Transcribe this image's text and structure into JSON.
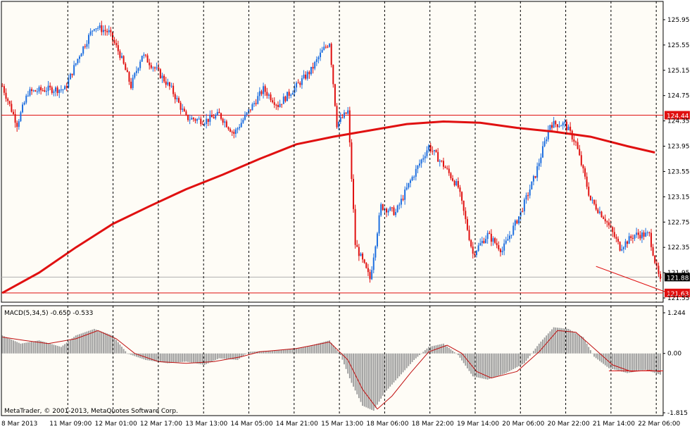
{
  "app": {
    "copyright": "MetaTrader, © 2001-2013, MetaQuotes Software Corp."
  },
  "colors": {
    "background": "#ffffff",
    "plot_bg": "#fefcf6",
    "grid": "#000000",
    "bull": "#1e6fe0",
    "bear": "#e01010",
    "ma": "#e01010",
    "hline": "#e01010",
    "histogram": "#9a9a9a",
    "signal": "#c01010"
  },
  "chart_data": [
    {
      "type": "candlestick",
      "symbol_pane": "main",
      "ylim": [
        121.55,
        126.15
      ],
      "y_tick_labels": [
        "125.95",
        "125.55",
        "125.15",
        "124.75",
        "124.35",
        "123.95",
        "123.55",
        "123.15",
        "122.75",
        "122.35",
        "121.95",
        "121.55"
      ],
      "y_ticks": [
        125.95,
        125.55,
        125.15,
        124.75,
        124.35,
        123.95,
        123.55,
        123.15,
        122.75,
        122.35,
        121.95,
        121.55
      ],
      "x_tick_labels": [
        "8 Mar 2013",
        "11 Mar 09:00",
        "12 Mar 01:00",
        "12 Mar 17:00",
        "13 Mar 13:00",
        "14 Mar 05:00",
        "14 Mar 21:00",
        "15 Mar 13:00",
        "18 Mar 06:00",
        "18 Mar 22:00",
        "19 Mar 14:00",
        "20 Mar 06:00",
        "20 Mar 22:00",
        "21 Mar 14:00",
        "22 Mar 06:00"
      ],
      "horizontal_lines": [
        {
          "value": 124.44,
          "label": "124.44"
        },
        {
          "value": 121.63,
          "label": "121.63"
        }
      ],
      "current_price": {
        "value": 121.88,
        "label": "121.88"
      },
      "moving_average_path": [
        {
          "bar": 0,
          "value": 121.63
        },
        {
          "bar": 20,
          "value": 121.95
        },
        {
          "bar": 40,
          "value": 122.35
        },
        {
          "bar": 60,
          "value": 122.72
        },
        {
          "bar": 80,
          "value": 123.0
        },
        {
          "bar": 100,
          "value": 123.27
        },
        {
          "bar": 120,
          "value": 123.5
        },
        {
          "bar": 140,
          "value": 123.75
        },
        {
          "bar": 160,
          "value": 123.98
        },
        {
          "bar": 180,
          "value": 124.1
        },
        {
          "bar": 200,
          "value": 124.2
        },
        {
          "bar": 220,
          "value": 124.3
        },
        {
          "bar": 240,
          "value": 124.34
        },
        {
          "bar": 260,
          "value": 124.32
        },
        {
          "bar": 280,
          "value": 124.24
        },
        {
          "bar": 300,
          "value": 124.18
        },
        {
          "bar": 320,
          "value": 124.1
        },
        {
          "bar": 340,
          "value": 123.95
        },
        {
          "bar": 355,
          "value": 123.85
        }
      ],
      "trendline": [
        {
          "bar": 323,
          "value": 122.05
        },
        {
          "bar": 365,
          "value": 121.6
        }
      ],
      "price_path": [
        {
          "bar": 0,
          "value": 124.9
        },
        {
          "bar": 8,
          "value": 124.3
        },
        {
          "bar": 14,
          "value": 124.8
        },
        {
          "bar": 24,
          "value": 124.85
        },
        {
          "bar": 34,
          "value": 124.85
        },
        {
          "bar": 42,
          "value": 125.4
        },
        {
          "bar": 50,
          "value": 125.85
        },
        {
          "bar": 58,
          "value": 125.75
        },
        {
          "bar": 64,
          "value": 125.4
        },
        {
          "bar": 70,
          "value": 124.9
        },
        {
          "bar": 76,
          "value": 125.4
        },
        {
          "bar": 84,
          "value": 125.15
        },
        {
          "bar": 92,
          "value": 124.85
        },
        {
          "bar": 100,
          "value": 124.4
        },
        {
          "bar": 110,
          "value": 124.35
        },
        {
          "bar": 118,
          "value": 124.45
        },
        {
          "bar": 126,
          "value": 124.15
        },
        {
          "bar": 134,
          "value": 124.5
        },
        {
          "bar": 142,
          "value": 124.85
        },
        {
          "bar": 150,
          "value": 124.6
        },
        {
          "bar": 160,
          "value": 124.9
        },
        {
          "bar": 168,
          "value": 125.15
        },
        {
          "bar": 174,
          "value": 125.45
        },
        {
          "bar": 178,
          "value": 125.6
        },
        {
          "bar": 182,
          "value": 124.3
        },
        {
          "bar": 188,
          "value": 124.5
        },
        {
          "bar": 192,
          "value": 122.4
        },
        {
          "bar": 200,
          "value": 121.85
        },
        {
          "bar": 206,
          "value": 123.0
        },
        {
          "bar": 214,
          "value": 122.9
        },
        {
          "bar": 222,
          "value": 123.4
        },
        {
          "bar": 232,
          "value": 123.95
        },
        {
          "bar": 240,
          "value": 123.65
        },
        {
          "bar": 248,
          "value": 123.3
        },
        {
          "bar": 256,
          "value": 122.25
        },
        {
          "bar": 264,
          "value": 122.55
        },
        {
          "bar": 272,
          "value": 122.3
        },
        {
          "bar": 282,
          "value": 122.9
        },
        {
          "bar": 290,
          "value": 123.5
        },
        {
          "bar": 298,
          "value": 124.3
        },
        {
          "bar": 306,
          "value": 124.3
        },
        {
          "bar": 312,
          "value": 124.0
        },
        {
          "bar": 320,
          "value": 123.1
        },
        {
          "bar": 328,
          "value": 122.8
        },
        {
          "bar": 336,
          "value": 122.35
        },
        {
          "bar": 344,
          "value": 122.55
        },
        {
          "bar": 352,
          "value": 122.55
        },
        {
          "bar": 356,
          "value": 122.0
        },
        {
          "bar": 358,
          "value": 121.8
        }
      ]
    },
    {
      "type": "bar",
      "pane": "indicator",
      "indicator_label": "MACD(5,34,5) -0.650 -0.533",
      "ylim": [
        -1.815,
        1.244
      ],
      "y_tick_labels": [
        "1.244",
        "0.00",
        "-1.815"
      ],
      "y_ticks": [
        1.244,
        0.0,
        -1.815
      ],
      "signal_level": -0.533,
      "histogram_path": [
        {
          "bar": 0,
          "value": 0.55
        },
        {
          "bar": 10,
          "value": 0.3
        },
        {
          "bar": 20,
          "value": 0.4
        },
        {
          "bar": 32,
          "value": 0.2
        },
        {
          "bar": 40,
          "value": 0.55
        },
        {
          "bar": 50,
          "value": 0.75
        },
        {
          "bar": 60,
          "value": 0.55
        },
        {
          "bar": 68,
          "value": 0.0
        },
        {
          "bar": 78,
          "value": -0.2
        },
        {
          "bar": 90,
          "value": -0.3
        },
        {
          "bar": 100,
          "value": -0.25
        },
        {
          "bar": 110,
          "value": -0.35
        },
        {
          "bar": 118,
          "value": -0.15
        },
        {
          "bar": 128,
          "value": -0.2
        },
        {
          "bar": 134,
          "value": 0.05
        },
        {
          "bar": 150,
          "value": 0.1
        },
        {
          "bar": 165,
          "value": 0.2
        },
        {
          "bar": 178,
          "value": 0.4
        },
        {
          "bar": 184,
          "value": -0.05
        },
        {
          "bar": 190,
          "value": -0.9
        },
        {
          "bar": 196,
          "value": -1.6
        },
        {
          "bar": 202,
          "value": -1.75
        },
        {
          "bar": 208,
          "value": -1.2
        },
        {
          "bar": 216,
          "value": -0.7
        },
        {
          "bar": 224,
          "value": -0.2
        },
        {
          "bar": 232,
          "value": 0.2
        },
        {
          "bar": 240,
          "value": 0.3
        },
        {
          "bar": 248,
          "value": -0.05
        },
        {
          "bar": 256,
          "value": -0.7
        },
        {
          "bar": 264,
          "value": -0.8
        },
        {
          "bar": 274,
          "value": -0.6
        },
        {
          "bar": 284,
          "value": -0.3
        },
        {
          "bar": 292,
          "value": 0.3
        },
        {
          "bar": 300,
          "value": 0.8
        },
        {
          "bar": 308,
          "value": 0.75
        },
        {
          "bar": 316,
          "value": 0.5
        },
        {
          "bar": 322,
          "value": -0.1
        },
        {
          "bar": 330,
          "value": -0.45
        },
        {
          "bar": 340,
          "value": -0.6
        },
        {
          "bar": 350,
          "value": -0.5
        },
        {
          "bar": 358,
          "value": -0.65
        }
      ],
      "signal_path": [
        {
          "bar": 0,
          "value": 0.5
        },
        {
          "bar": 12,
          "value": 0.4
        },
        {
          "bar": 25,
          "value": 0.3
        },
        {
          "bar": 40,
          "value": 0.45
        },
        {
          "bar": 52,
          "value": 0.7
        },
        {
          "bar": 62,
          "value": 0.45
        },
        {
          "bar": 72,
          "value": 0.0
        },
        {
          "bar": 85,
          "value": -0.25
        },
        {
          "bar": 100,
          "value": -0.3
        },
        {
          "bar": 115,
          "value": -0.25
        },
        {
          "bar": 130,
          "value": -0.1
        },
        {
          "bar": 140,
          "value": 0.05
        },
        {
          "bar": 160,
          "value": 0.15
        },
        {
          "bar": 178,
          "value": 0.35
        },
        {
          "bar": 188,
          "value": -0.2
        },
        {
          "bar": 196,
          "value": -1.1
        },
        {
          "bar": 204,
          "value": -1.7
        },
        {
          "bar": 212,
          "value": -1.3
        },
        {
          "bar": 222,
          "value": -0.6
        },
        {
          "bar": 232,
          "value": 0.05
        },
        {
          "bar": 242,
          "value": 0.25
        },
        {
          "bar": 250,
          "value": 0.0
        },
        {
          "bar": 258,
          "value": -0.55
        },
        {
          "bar": 266,
          "value": -0.75
        },
        {
          "bar": 280,
          "value": -0.55
        },
        {
          "bar": 292,
          "value": 0.05
        },
        {
          "bar": 302,
          "value": 0.7
        },
        {
          "bar": 312,
          "value": 0.65
        },
        {
          "bar": 322,
          "value": 0.15
        },
        {
          "bar": 332,
          "value": -0.35
        },
        {
          "bar": 342,
          "value": -0.55
        },
        {
          "bar": 352,
          "value": -0.52
        },
        {
          "bar": 358,
          "value": -0.55
        }
      ]
    }
  ]
}
